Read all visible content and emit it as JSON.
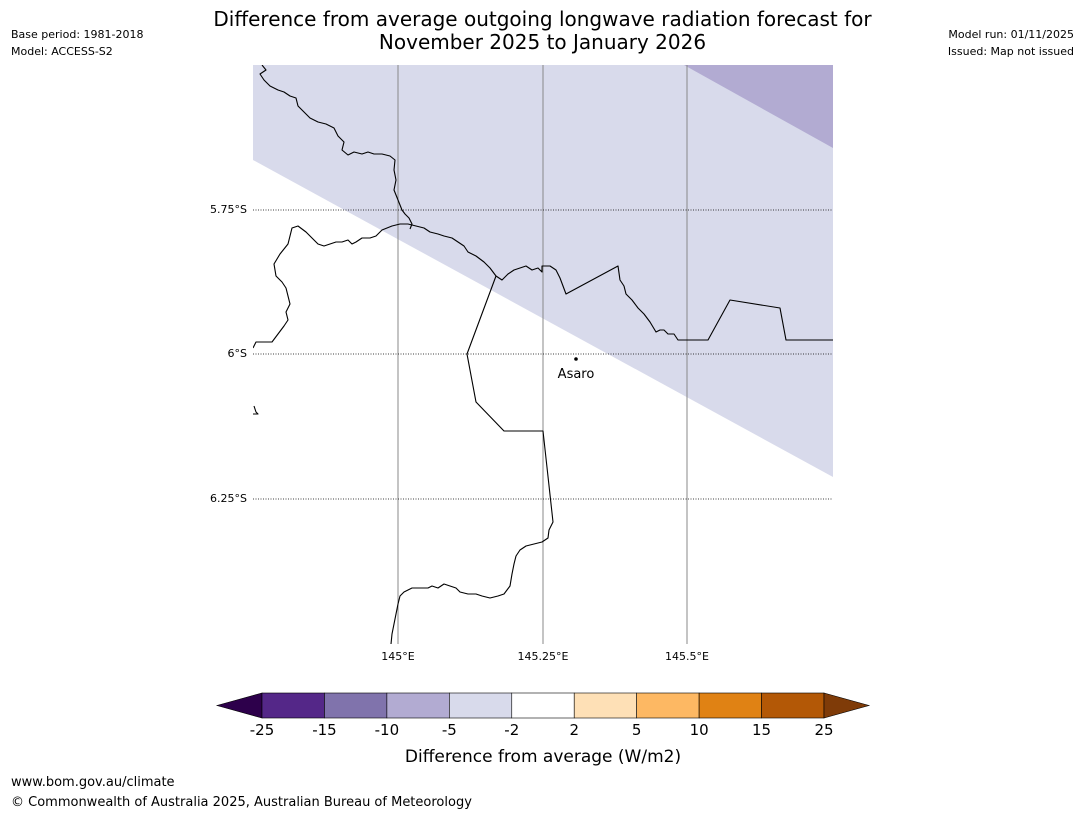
{
  "header": {
    "base_period": "Base period: 1981-2018",
    "model": "Model: ACCESS-S2",
    "model_run": "Model run: 01/11/2025",
    "issued": "Issued: Map not issued",
    "title_line1": "Difference from average outgoing longwave radiation forecast for",
    "title_line2": "November 2025 to January 2026"
  },
  "map": {
    "lat_labels": [
      "5.75°S",
      "6°S",
      "6.25°S"
    ],
    "lon_labels": [
      "145°E",
      "145.25°E",
      "145.5°E"
    ],
    "place": {
      "name": "Asaro"
    }
  },
  "legend": {
    "title": "Difference from average (W/m2)",
    "ticks": [
      "-25",
      "-15",
      "-10",
      "-5",
      "-2",
      "2",
      "5",
      "10",
      "15",
      "25"
    ],
    "colors": [
      "#2d004b",
      "#542788",
      "#8073ac",
      "#b2abd2",
      "#d8daeb",
      "#ffffff",
      "#fee0b6",
      "#fdb863",
      "#e08214",
      "#b35806",
      "#7f3b08"
    ]
  },
  "footer": {
    "url": "www.bom.gov.au/climate",
    "copyright": "© Commonwealth of Australia 2025, Australian Bureau of Meteorology"
  }
}
